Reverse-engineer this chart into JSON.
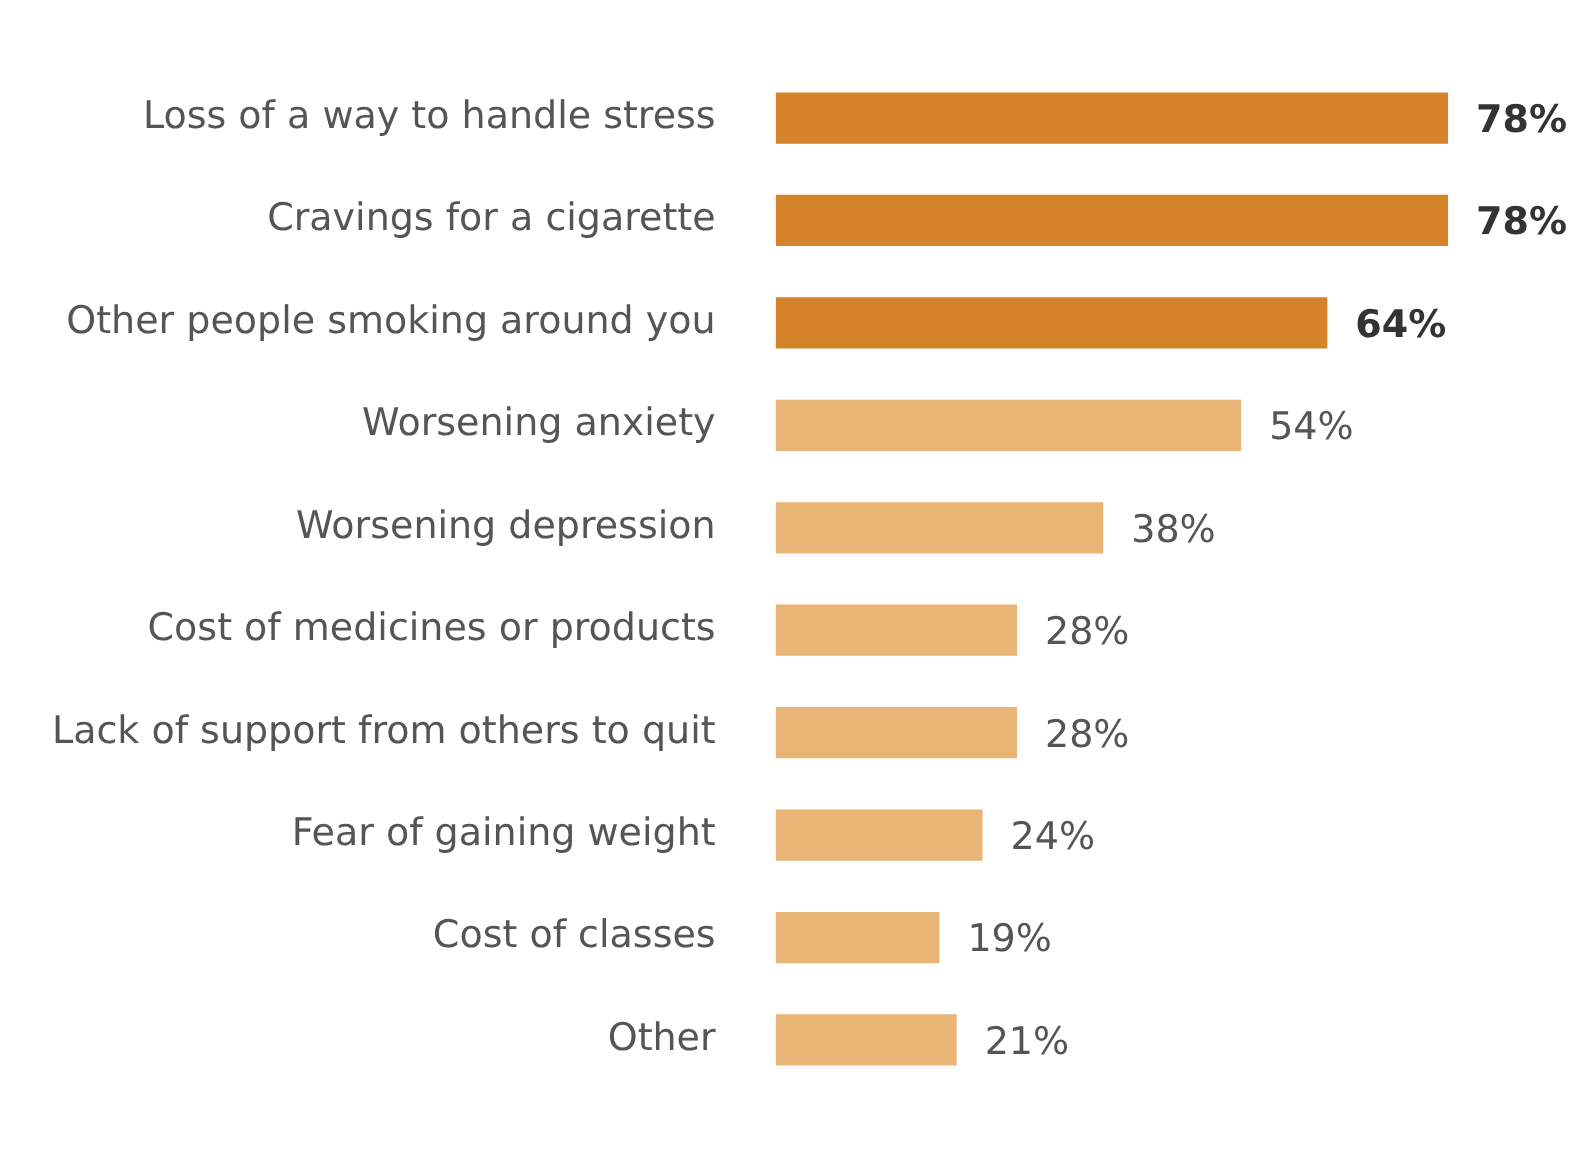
{
  "chart_data": {
    "type": "bar",
    "orientation": "horizontal",
    "categories": [
      "Loss of a way to handle stress",
      "Cravings for a cigarette",
      "Other people smoking around you",
      "Worsening anxiety",
      "Worsening depression",
      "Cost of medicines or products",
      "Lack of support from others to quit",
      "Fear of gaining weight",
      "Cost of classes",
      "Other"
    ],
    "values": [
      78,
      78,
      64,
      54,
      38,
      28,
      28,
      24,
      19,
      21
    ],
    "value_labels": [
      "78%",
      "78%",
      "64%",
      "54%",
      "38%",
      "28%",
      "28%",
      "24%",
      "19%",
      "21%"
    ],
    "colors": [
      "#d4832a",
      "#d4832a",
      "#d4832a",
      "#e9b577",
      "#e9b577",
      "#e9b577",
      "#e9b577",
      "#e9b577",
      "#e9b577",
      "#e9b577"
    ],
    "legend": false
  }
}
